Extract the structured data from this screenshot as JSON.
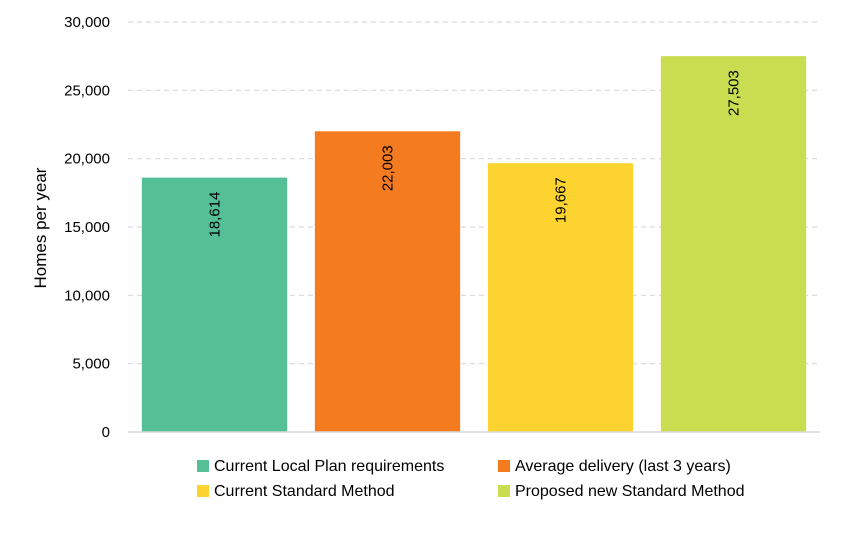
{
  "chart_data": {
    "type": "bar",
    "categories": [
      "Current Local Plan requirements",
      "Average delivery (last 3 years)",
      "Current Standard Method",
      "Proposed new Standard Method"
    ],
    "values": [
      18614,
      22003,
      19667,
      27503
    ],
    "data_labels": [
      "18,614",
      "22,003",
      "19,667",
      "27,503"
    ],
    "colors": [
      "#55bf96",
      "#f47b20",
      "#fdd32f",
      "#c8dd4f"
    ],
    "title": "",
    "xlabel": "",
    "ylabel": "Homes per year",
    "ylim": [
      0,
      30000
    ],
    "yticks": [
      0,
      5000,
      10000,
      15000,
      20000,
      25000,
      30000
    ],
    "ytick_labels": [
      "0",
      "5,000",
      "10,000",
      "15,000",
      "20,000",
      "25,000",
      "30,000"
    ],
    "grid": true,
    "legend": {
      "placement": "bottom",
      "entries": [
        "Current Local Plan requirements",
        "Average delivery (last 3 years)",
        "Current Standard Method",
        "Proposed new Standard Method"
      ]
    }
  }
}
